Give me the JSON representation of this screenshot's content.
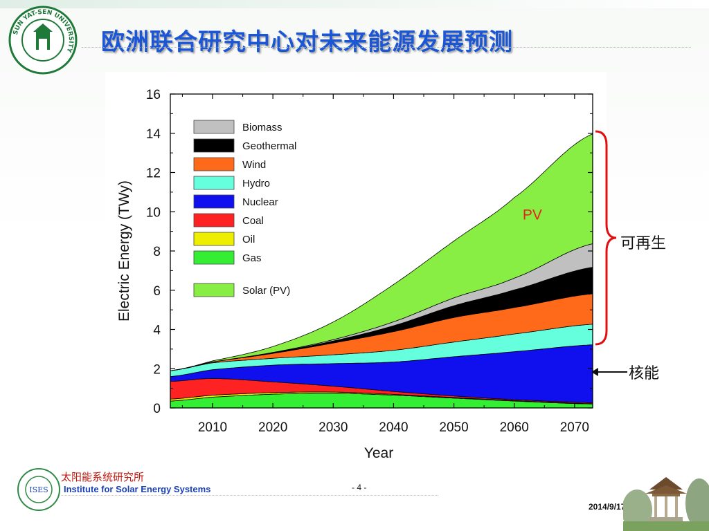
{
  "slide": {
    "title": "欧洲联合研究中心对未来能源发展预测",
    "page_number": "- 4 -",
    "date": "2014/9/17",
    "institute_cn": "太阳能系统研究所",
    "institute_en": "Institute for Solar Energy Systems",
    "institute_logo_text": "ISES",
    "university_logo_text": "SUN YAT-SEN UNIVERSITY",
    "annotation_renewable": "可再生",
    "annotation_nuclear": "核能",
    "colors": {
      "title": "#1a56d6",
      "brace": "#e01010",
      "institute_cn": "#c0190f",
      "institute_en": "#1a40b8"
    }
  },
  "chart_data": {
    "type": "area",
    "stacked": true,
    "xlabel": "Year",
    "ylabel": "Electric Energy (TWy)",
    "xlim": [
      2003,
      2073
    ],
    "ylim": [
      0,
      16
    ],
    "xticks": [
      2010,
      2020,
      2030,
      2040,
      2050,
      2060,
      2070
    ],
    "yticks": [
      0,
      2,
      4,
      6,
      8,
      10,
      12,
      14,
      16
    ],
    "grid": false,
    "legend_position": "top-left",
    "annotations": [
      {
        "text": "PV",
        "x": 2063,
        "y": 9.6
      }
    ],
    "x": [
      2003,
      2010,
      2020,
      2030,
      2040,
      2050,
      2060,
      2073
    ],
    "series": [
      {
        "name": "Gas",
        "color": "#33ee33",
        "values": [
          0.35,
          0.55,
          0.7,
          0.75,
          0.65,
          0.5,
          0.35,
          0.2
        ]
      },
      {
        "name": "Oil",
        "color": "#eeee00",
        "values": [
          0.1,
          0.1,
          0.08,
          0.06,
          0.04,
          0.03,
          0.02,
          0.02
        ]
      },
      {
        "name": "Coal",
        "color": "#ff2222",
        "values": [
          0.9,
          0.85,
          0.55,
          0.3,
          0.15,
          0.08,
          0.05,
          0.05
        ]
      },
      {
        "name": "Nuclear",
        "color": "#1010ee",
        "values": [
          0.25,
          0.45,
          0.85,
          1.15,
          1.5,
          2.0,
          2.45,
          2.95
        ]
      },
      {
        "name": "Hydro",
        "color": "#66ffdd",
        "values": [
          0.3,
          0.35,
          0.35,
          0.45,
          0.6,
          0.75,
          0.9,
          1.05
        ]
      },
      {
        "name": "Wind",
        "color": "#ff6a1a",
        "values": [
          0.0,
          0.05,
          0.25,
          0.6,
          0.95,
          1.25,
          1.35,
          1.55
        ]
      },
      {
        "name": "Geothermal",
        "color": "#000000",
        "values": [
          0.0,
          0.0,
          0.03,
          0.1,
          0.3,
          0.6,
          0.9,
          1.35
        ]
      },
      {
        "name": "Biomass",
        "color": "#c0c0c0",
        "values": [
          0.0,
          0.0,
          0.02,
          0.07,
          0.2,
          0.4,
          0.6,
          1.2
        ]
      },
      {
        "name": "Solar (PV)",
        "color": "#88ee44",
        "values": [
          0.0,
          0.05,
          0.3,
          0.9,
          1.9,
          2.9,
          4.1,
          5.6
        ]
      }
    ],
    "legend_order": [
      "Biomass",
      "Geothermal",
      "Wind",
      "Hydro",
      "Nuclear",
      "Coal",
      "Oil",
      "Gas",
      "Solar (PV)"
    ]
  }
}
